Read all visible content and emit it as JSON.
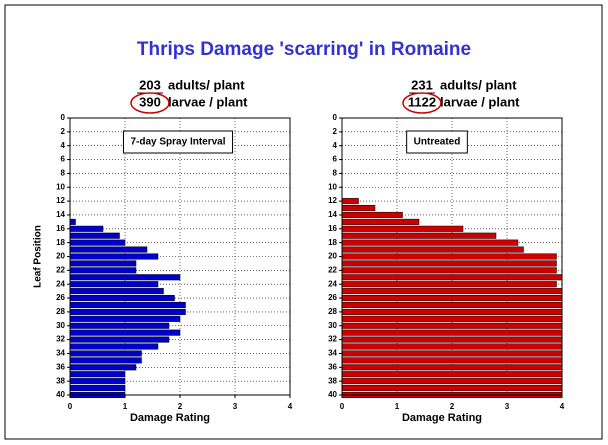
{
  "slide": {
    "title": "Thrips Damage 'scarring' in Romaine"
  },
  "chart_data": [
    {
      "type": "bar",
      "orientation": "horizontal",
      "annotation": "7-day Spray Interval",
      "adults": 203,
      "adults_label": "adults/ plant",
      "larvae": 390,
      "larvae_label": "larvae / plant",
      "xlabel": "Damage Rating",
      "ylabel": "Leaf Position",
      "color": "#0000cc",
      "categories": [
        15,
        16,
        17,
        18,
        19,
        20,
        21,
        22,
        23,
        24,
        25,
        26,
        27,
        28,
        29,
        30,
        31,
        32,
        33,
        34,
        35,
        36,
        37,
        38,
        39,
        40
      ],
      "values": [
        0.1,
        0.6,
        0.9,
        1.0,
        1.4,
        1.6,
        1.2,
        1.2,
        2.0,
        1.6,
        1.7,
        1.9,
        2.1,
        2.1,
        2.0,
        1.8,
        2.0,
        1.8,
        1.6,
        1.3,
        1.3,
        1.2,
        1.0,
        1.0,
        1.0,
        1.0
      ],
      "xlim": [
        0,
        4
      ],
      "xticks": [
        0,
        1,
        2,
        3,
        4
      ],
      "ylim": [
        0,
        40
      ],
      "yticks": [
        0,
        2,
        4,
        6,
        8,
        10,
        12,
        14,
        16,
        18,
        20,
        22,
        24,
        26,
        28,
        30,
        32,
        34,
        36,
        38,
        40
      ],
      "grid": true
    },
    {
      "type": "bar",
      "orientation": "horizontal",
      "annotation": "Untreated",
      "adults": 231,
      "adults_label": "adults/ plant",
      "larvae": 1122,
      "larvae_label": "larvae / plant",
      "xlabel": "Damage Rating",
      "color": "#cc0000",
      "categories": [
        12,
        13,
        14,
        15,
        16,
        17,
        18,
        19,
        20,
        21,
        22,
        23,
        24,
        25,
        26,
        27,
        28,
        29,
        30,
        31,
        32,
        33,
        34,
        35,
        36,
        37,
        38,
        39,
        40
      ],
      "values": [
        0.3,
        0.6,
        1.1,
        1.4,
        2.2,
        2.8,
        3.2,
        3.3,
        3.9,
        3.9,
        3.9,
        4.0,
        3.9,
        4.0,
        4.0,
        4.0,
        4.0,
        4.0,
        4.0,
        4.0,
        4.0,
        4.0,
        4.0,
        4.0,
        4.0,
        4.0,
        4.0,
        4.0,
        4.0
      ],
      "xlim": [
        0,
        4
      ],
      "xticks": [
        0,
        1,
        2,
        3,
        4
      ],
      "ylim": [
        0,
        40
      ],
      "yticks": [
        0,
        2,
        4,
        6,
        8,
        10,
        12,
        14,
        16,
        18,
        20,
        22,
        24,
        26,
        28,
        30,
        32,
        34,
        36,
        38,
        40
      ],
      "grid": true
    }
  ]
}
